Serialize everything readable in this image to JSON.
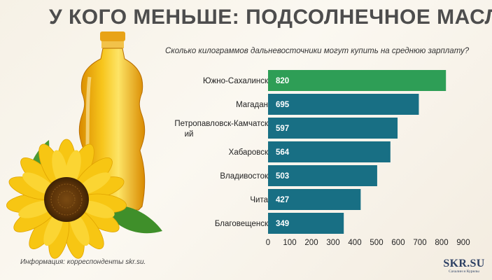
{
  "title": "У КОГО МЕНЬШЕ: ПОДСОЛНЕЧНОЕ МАСЛО",
  "source": "Информация: корреспонденты skr.su.",
  "brand": {
    "name": "SKR.SU",
    "tagline": "Сахалин и Курилы"
  },
  "colors": {
    "highlight": "#2e9e56",
    "bar": "#186f84",
    "title": "#4d4d4d"
  },
  "chart_data": {
    "type": "bar",
    "orientation": "horizontal",
    "title": "Сколько килограммов дальневосточники могут купить на среднюю зарплату?",
    "categories": [
      "Южно-Сахалинск",
      "Магадан",
      "Петропавловск-Камчатский",
      "Хабаровск",
      "Владивосток",
      "Чита",
      "Благовещенск"
    ],
    "values": [
      820,
      695,
      597,
      564,
      503,
      427,
      349
    ],
    "highlight_index": 0,
    "xlim": [
      0,
      900
    ],
    "xticks": [
      0,
      100,
      200,
      300,
      400,
      500,
      600,
      700,
      800,
      900
    ],
    "grid": false,
    "legend": "none"
  }
}
